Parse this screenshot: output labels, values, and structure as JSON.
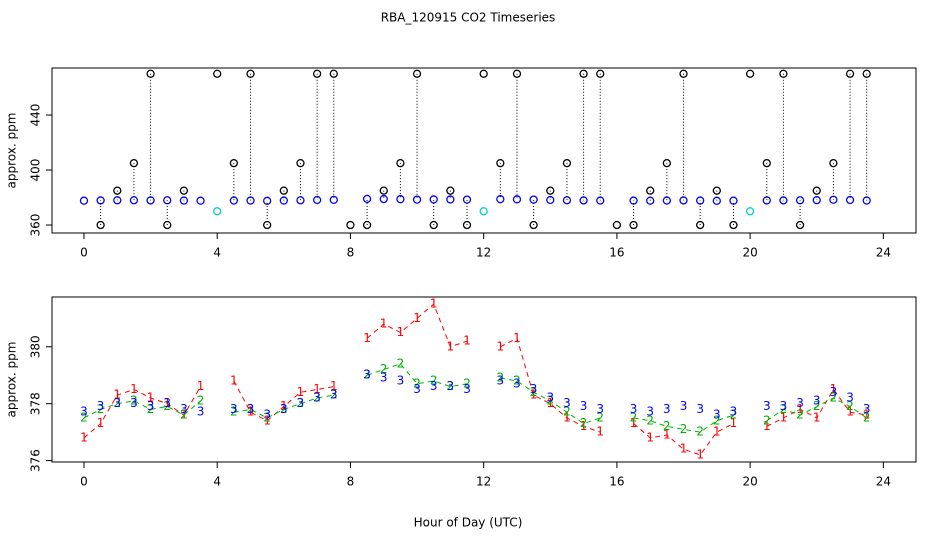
{
  "chart_data": [
    {
      "type": "scatter",
      "title": "RBA_120915  CO2 Timeseries",
      "y_label": "approx. ppm",
      "x": [
        0,
        0.5,
        1,
        1.5,
        2,
        2.5,
        3,
        3.5,
        4,
        4.5,
        5,
        5.5,
        6,
        6.5,
        7,
        7.5,
        8,
        8.5,
        9,
        9.5,
        10,
        10.5,
        11,
        11.5,
        12,
        12.5,
        13,
        13.5,
        14,
        14.5,
        15,
        15.5,
        16,
        16.5,
        17,
        17.5,
        18,
        18.5,
        19,
        19.5,
        20,
        20.5,
        21,
        21.5,
        22,
        22.5,
        23,
        23.5
      ],
      "xlim": [
        -0.96,
        24.98
      ],
      "xticks": [
        0,
        4,
        8,
        12,
        16,
        20,
        24
      ],
      "ylim": [
        354.2,
        474.2
      ],
      "yticks": [
        360,
        400,
        440
      ],
      "series": [
        {
          "color": "#0000ff",
          "values": [
            377.7,
            377.9,
            378.0,
            378.0,
            377.9,
            378.0,
            377.8,
            377.7,
            null,
            377.8,
            377.8,
            377.6,
            377.8,
            378.0,
            378.2,
            378.3,
            null,
            379.0,
            378.9,
            378.8,
            378.5,
            378.6,
            378.6,
            378.5,
            null,
            378.8,
            378.7,
            378.5,
            378.2,
            378.0,
            377.9,
            377.8,
            null,
            377.8,
            377.7,
            377.8,
            377.9,
            377.8,
            377.6,
            377.7,
            null,
            377.9,
            377.9,
            378.0,
            378.1,
            378.4,
            378.2,
            377.8
          ]
        },
        {
          "color": "#000000",
          "values": [
            null,
            360,
            385,
            405,
            470,
            360,
            385,
            null,
            470,
            405,
            470,
            360,
            385,
            405,
            470,
            470,
            360,
            360,
            385,
            405,
            470,
            360,
            385,
            360,
            470,
            405,
            470,
            360,
            385,
            405,
            470,
            470,
            360,
            360,
            385,
            405,
            470,
            360,
            385,
            360,
            470,
            405,
            470,
            360,
            385,
            405,
            470,
            470
          ]
        },
        {
          "color": "#00cccc",
          "values": [
            null,
            null,
            null,
            null,
            null,
            null,
            null,
            null,
            370,
            null,
            null,
            null,
            null,
            null,
            null,
            null,
            null,
            null,
            null,
            null,
            null,
            null,
            null,
            null,
            370,
            null,
            null,
            null,
            null,
            null,
            null,
            null,
            null,
            null,
            null,
            null,
            null,
            null,
            null,
            null,
            370,
            null,
            null,
            null,
            null,
            null,
            null,
            null
          ]
        }
      ]
    },
    {
      "type": "scatter",
      "y_label": "approx. ppm",
      "x_label": "Hour of Day (UTC)",
      "xlim": [
        -0.96,
        24.98
      ],
      "xticks": [
        0,
        4,
        8,
        12,
        16,
        20,
        24
      ],
      "ylim": [
        375.95,
        381.75
      ],
      "yticks": [
        376,
        378,
        380
      ],
      "series": [
        {
          "marker": "1",
          "color": "#ff0000",
          "linestyle": "dashed",
          "values": [
            376.8,
            377.3,
            378.3,
            378.5,
            378.2,
            378.0,
            377.6,
            378.6,
            null,
            378.8,
            377.7,
            377.4,
            377.9,
            378.4,
            378.5,
            378.6,
            null,
            380.3,
            380.8,
            380.5,
            381.0,
            381.5,
            380.0,
            380.2,
            null,
            380.0,
            380.3,
            378.3,
            378.0,
            377.5,
            377.2,
            377.0,
            null,
            377.3,
            376.8,
            376.9,
            376.4,
            376.2,
            377.0,
            377.3,
            null,
            377.2,
            377.5,
            377.8,
            377.5,
            378.5,
            377.7,
            377.6
          ]
        },
        {
          "marker": "2",
          "color": "#00b000",
          "linestyle": "dashed",
          "values": [
            377.5,
            377.8,
            378.0,
            378.1,
            377.8,
            377.9,
            377.6,
            378.1,
            null,
            377.7,
            377.8,
            377.5,
            377.8,
            378.0,
            378.2,
            378.3,
            null,
            379.0,
            379.2,
            379.4,
            378.7,
            378.8,
            378.6,
            378.7,
            null,
            378.9,
            378.8,
            378.4,
            378.1,
            377.7,
            377.3,
            377.5,
            null,
            377.5,
            377.4,
            377.2,
            377.1,
            377.0,
            377.4,
            377.6,
            null,
            377.4,
            377.8,
            377.6,
            377.9,
            378.2,
            377.9,
            377.5
          ]
        },
        {
          "marker": "3",
          "color": "#0000ff",
          "values": [
            377.7,
            377.9,
            378.0,
            378.0,
            377.9,
            378.0,
            377.8,
            377.7,
            null,
            377.8,
            377.8,
            377.6,
            377.8,
            378.0,
            378.2,
            378.3,
            null,
            379.0,
            378.9,
            378.8,
            378.5,
            378.6,
            378.6,
            378.5,
            null,
            378.8,
            378.7,
            378.5,
            378.2,
            378.0,
            377.9,
            377.8,
            null,
            377.8,
            377.7,
            377.8,
            377.9,
            377.8,
            377.6,
            377.7,
            null,
            377.9,
            377.9,
            378.0,
            378.1,
            378.4,
            378.2,
            377.8
          ]
        }
      ]
    }
  ]
}
